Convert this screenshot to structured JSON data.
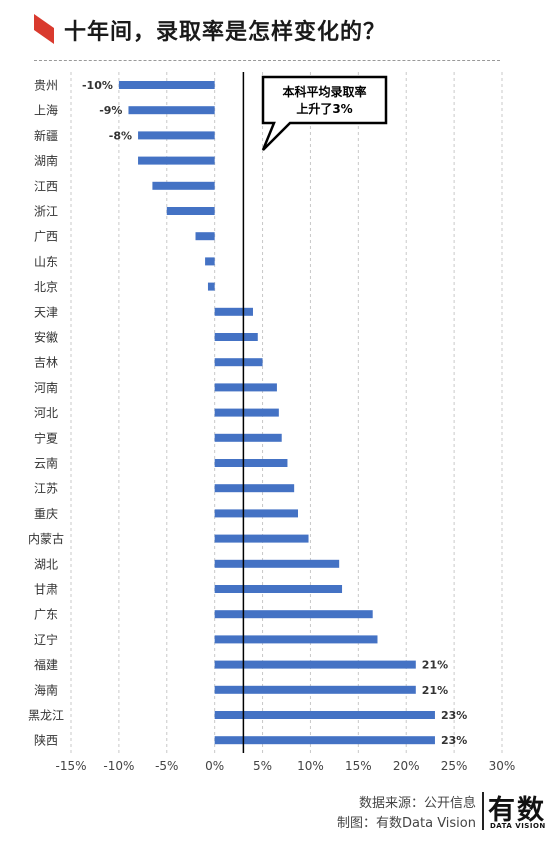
{
  "header": {
    "title": "十年间，录取率是怎样变化的？"
  },
  "colors": {
    "accent": "#d93a2e",
    "bar": "#4472c4",
    "text": "#333333"
  },
  "chart_data": {
    "type": "bar",
    "orientation": "horizontal",
    "title": "十年间，录取率是怎样变化的？",
    "xlabel": "",
    "ylabel": "",
    "unit": "%",
    "xlim": [
      -15,
      30
    ],
    "x_ticks": [
      "-15%",
      "-10%",
      "-5%",
      "0%",
      "5%",
      "10%",
      "15%",
      "20%",
      "25%",
      "30%"
    ],
    "grid": true,
    "legend": "none",
    "categories": [
      "贵州",
      "上海",
      "新疆",
      "湖南",
      "江西",
      "浙江",
      "广西",
      "山东",
      "北京",
      "天津",
      "安徽",
      "吉林",
      "河南",
      "河北",
      "宁夏",
      "云南",
      "江苏",
      "重庆",
      "内蒙古",
      "湖北",
      "甘肃",
      "广东",
      "辽宁",
      "福建",
      "海南",
      "黑龙江",
      "陕西"
    ],
    "values": [
      -10,
      -9,
      -8,
      -8,
      -6.5,
      -5,
      -2,
      -1,
      -0.7,
      4,
      4.5,
      5,
      6.5,
      6.7,
      7,
      7.6,
      8.3,
      8.7,
      9.8,
      13,
      13.3,
      16.5,
      17,
      21,
      21,
      23,
      23
    ],
    "data_labels": [
      "-10%",
      "-9%",
      "-8%",
      "",
      "",
      "",
      "",
      "",
      "",
      "",
      "",
      "",
      "",
      "",
      "",
      "",
      "",
      "",
      "",
      "",
      "",
      "",
      "",
      "21%",
      "21%",
      "23%",
      "23%"
    ],
    "reference_line": {
      "value": 3,
      "callout_line1": "本科平均录取率",
      "callout_line2": "上升了3%"
    }
  },
  "footer": {
    "source": "数据来源：公开信息",
    "credit": "制图：有数Data Vision",
    "logo_main": "有数",
    "logo_sub": "DATA VISION"
  }
}
